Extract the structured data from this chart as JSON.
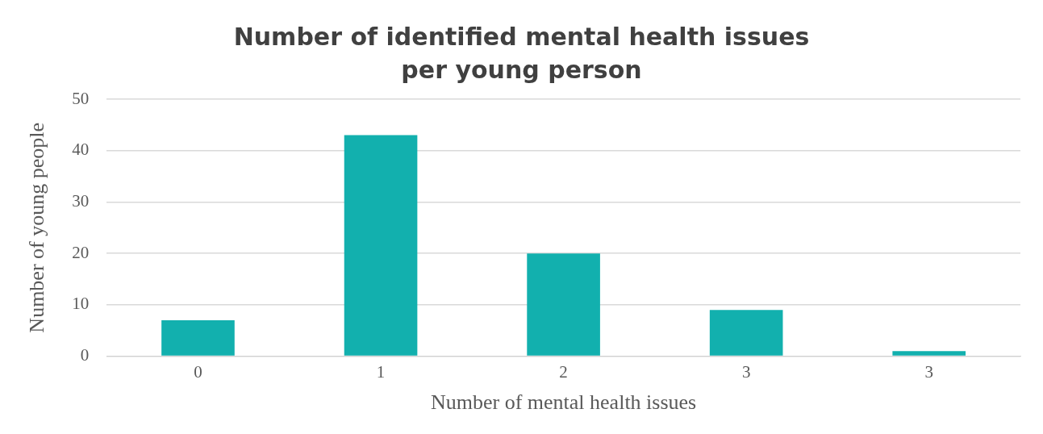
{
  "chart_data": {
    "type": "bar",
    "title": "Number of identified mental health issues per young person",
    "xlabel": "Number of mental health issues",
    "ylabel": "Number of young people",
    "categories": [
      "0",
      "1",
      "2",
      "3",
      "3"
    ],
    "values": [
      7,
      43,
      20,
      9,
      1
    ],
    "color": "#12b0ae",
    "ylim": [
      0,
      50
    ],
    "yticks": [
      0,
      10,
      20,
      30,
      40,
      50
    ],
    "grid": "y",
    "legend": false
  }
}
